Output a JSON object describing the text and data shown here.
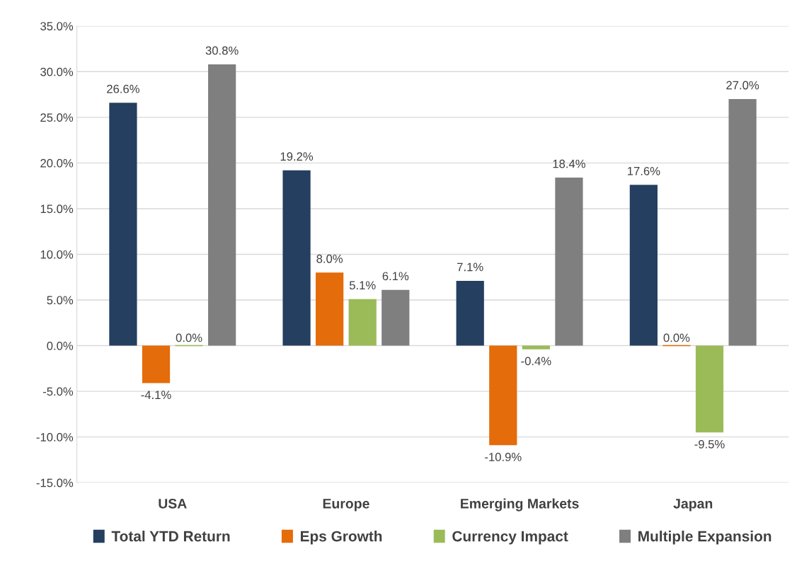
{
  "chart_data": {
    "type": "bar",
    "categories": [
      "USA",
      "Europe",
      "Emerging Markets",
      "Japan"
    ],
    "series": [
      {
        "name": "Total YTD Return",
        "color": "#243f60",
        "values": [
          26.6,
          19.2,
          7.1,
          17.6
        ],
        "value_labels": [
          "26.6%",
          "19.2%",
          "7.1%",
          "17.6%"
        ]
      },
      {
        "name": "Eps Growth",
        "color": "#e46c0a",
        "values": [
          -4.1,
          8.0,
          -10.9,
          0.0
        ],
        "value_labels": [
          "-4.1%",
          "8.0%",
          "-10.9%",
          "0.0%"
        ]
      },
      {
        "name": "Currency Impact",
        "color": "#9bbb59",
        "values": [
          0.0,
          5.1,
          -0.4,
          -9.5
        ],
        "value_labels": [
          "0.0%",
          "5.1%",
          "-0.4%",
          "-9.5%"
        ]
      },
      {
        "name": "Multiple Expansion",
        "color": "#7f7f7f",
        "values": [
          30.8,
          6.1,
          18.4,
          27.0
        ],
        "value_labels": [
          "30.8%",
          "6.1%",
          "18.4%",
          "27.0%"
        ]
      }
    ],
    "ylim": [
      -15,
      35
    ],
    "yticks": [
      {
        "value": -15,
        "label": "-15.0%"
      },
      {
        "value": -10,
        "label": "-10.0%"
      },
      {
        "value": -5,
        "label": "-5.0%"
      },
      {
        "value": 0,
        "label": "0.0%"
      },
      {
        "value": 5,
        "label": "5.0%"
      },
      {
        "value": 10,
        "label": "10.0%"
      },
      {
        "value": 15,
        "label": "15.0%"
      },
      {
        "value": 20,
        "label": "20.0%"
      },
      {
        "value": 25,
        "label": "25.0%"
      },
      {
        "value": 30,
        "label": "30.0%"
      },
      {
        "value": 35,
        "label": "35.0%"
      }
    ],
    "grid": "y",
    "legend": "bottom"
  }
}
